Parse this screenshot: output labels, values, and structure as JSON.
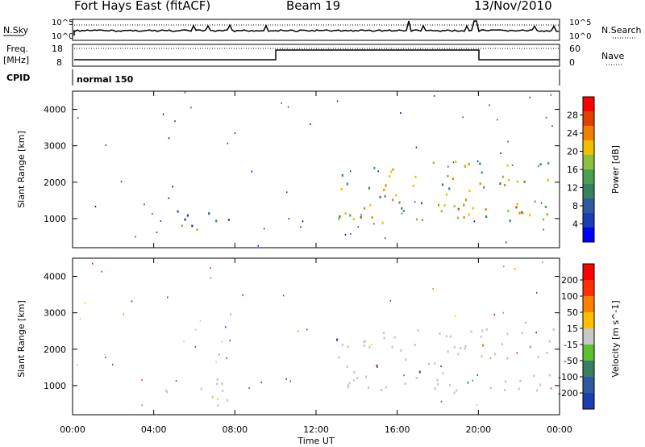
{
  "header": {
    "station": "Fort Hays East (fitACF)",
    "beam": "Beam 19",
    "date": "13/Nov/2010"
  },
  "noise_panel": {
    "left_label": "N.Sky",
    "right_label": "N.Search",
    "right_label_style": "dotted",
    "left_ticks": [
      "10^5",
      "10^0"
    ],
    "right_ticks": [
      "10^5",
      "10^0"
    ]
  },
  "freq_panel": {
    "left_label_line1": "Freq.",
    "left_label_line2": "[MHz]",
    "right_label": "Nave",
    "right_label_style": "dotted",
    "left_ticks": [
      "18",
      "8"
    ],
    "right_ticks": [
      "60",
      "0"
    ]
  },
  "cpid_panel": {
    "label": "CPID",
    "value": "normal 150"
  },
  "colors": {
    "power_scale": [
      "#0000ff",
      "#1a3fb0",
      "#2e5aa0",
      "#3a8060",
      "#4e9e50",
      "#8ec040",
      "#f0c000",
      "#f08000",
      "#e04000",
      "#ff0000"
    ],
    "velocity_scale": [
      "#1a3fb0",
      "#2e5aa0",
      "#3a8060",
      "#5cc030",
      "#c8c8c8",
      "#ffc000",
      "#ff8000",
      "#ff3000",
      "#ff0000"
    ]
  },
  "chart_data": [
    {
      "type": "heatmap",
      "name": "power",
      "ylabel": "Slant Range [km]",
      "yticks": [
        "1000",
        "2000",
        "3000",
        "4000"
      ],
      "ylim": [
        200,
        4500
      ],
      "xlim": [
        0,
        24
      ],
      "colorbar": {
        "label": "Power [dB]",
        "ticks": [
          "4",
          "8",
          "12",
          "16",
          "20",
          "24",
          "28"
        ]
      },
      "regions": [
        {
          "x": [
            4.5,
            7.9
          ],
          "y": [
            600,
            1300
          ],
          "level": 0.35
        },
        {
          "x": [
            12.9,
            23.8
          ],
          "y": [
            900,
            2600
          ],
          "level": 0.55
        },
        {
          "x": [
            17.5,
            23.5
          ],
          "y": [
            1000,
            1500
          ],
          "level": 0.75
        },
        {
          "x": [
            0.1,
            0.4
          ],
          "y": [
            2400,
            2700
          ],
          "level": 0.2
        }
      ]
    },
    {
      "type": "heatmap",
      "name": "velocity",
      "ylabel": "Slant Range [km]",
      "yticks": [
        "1000",
        "2000",
        "3000",
        "4000"
      ],
      "ylim": [
        200,
        4500
      ],
      "xlim": [
        0,
        24
      ],
      "xlabel": "Time UT",
      "xticks": [
        "00:00",
        "04:00",
        "08:00",
        "12:00",
        "16:00",
        "20:00",
        "00:00"
      ],
      "colorbar": {
        "label": "Velocity [m s^-1]",
        "ticks": [
          "200",
          "100",
          "50",
          "15",
          "-15",
          "-50",
          "-100",
          "-200"
        ]
      },
      "regions": [
        {
          "x": [
            4.5,
            7.9
          ],
          "y": [
            600,
            1300
          ],
          "level": 0.5
        },
        {
          "x": [
            12.9,
            23.8
          ],
          "y": [
            800,
            2600
          ],
          "level": 0.5
        }
      ]
    }
  ]
}
